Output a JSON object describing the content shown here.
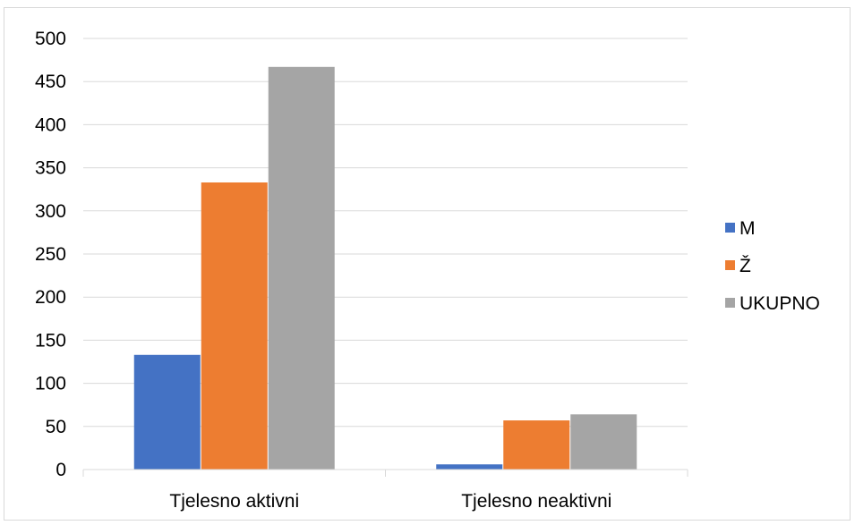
{
  "chart_data": {
    "type": "bar",
    "categories": [
      "Tjelesno aktivni",
      "Tjelesno neaktivni"
    ],
    "series": [
      {
        "name": "M",
        "color": "#4472C4",
        "values": [
          133,
          6
        ]
      },
      {
        "name": "Ž",
        "color": "#ED7D31",
        "values": [
          333,
          57
        ]
      },
      {
        "name": "UKUPNO",
        "color": "#A5A5A5",
        "values": [
          467,
          64
        ]
      }
    ],
    "ylim": [
      0,
      500
    ],
    "yticks": [
      0,
      50,
      100,
      150,
      200,
      250,
      300,
      350,
      400,
      450,
      500
    ],
    "grid": true,
    "legend_position": "right",
    "title": "",
    "xlabel": "",
    "ylabel": ""
  }
}
